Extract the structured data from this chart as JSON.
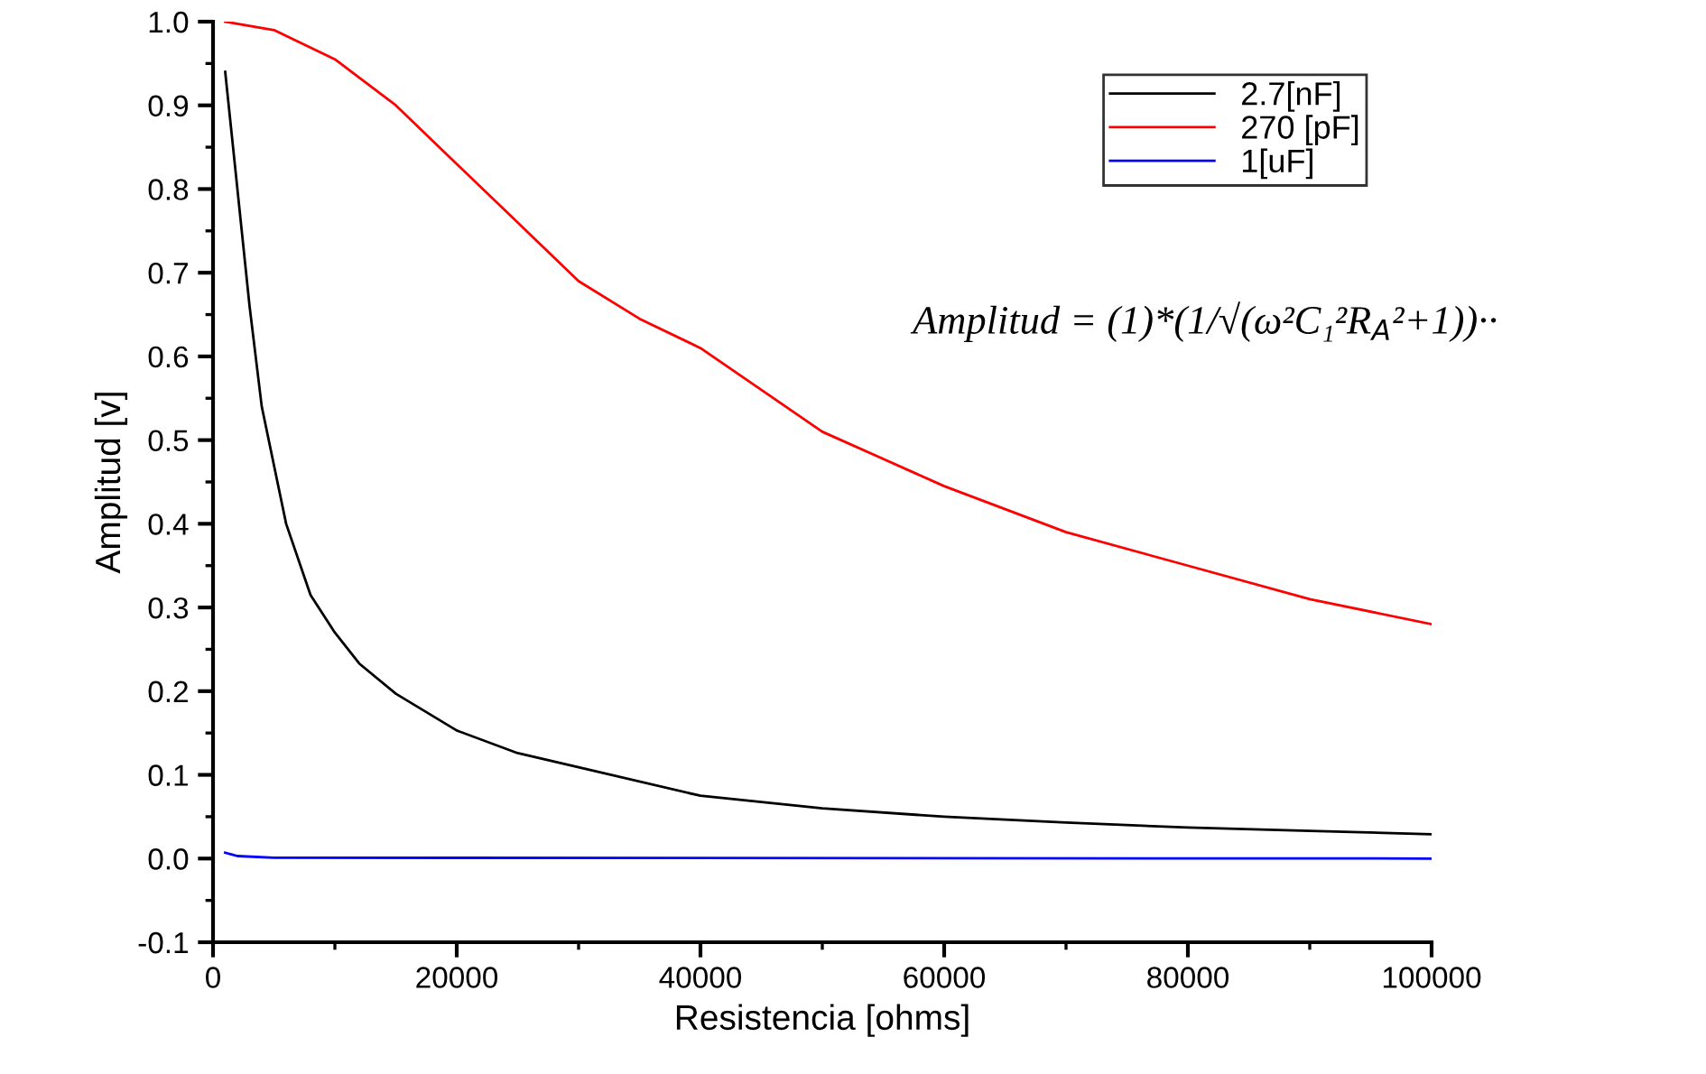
{
  "chart_data": {
    "type": "line",
    "xlabel": "Resistencia [ohms]",
    "ylabel": "Amplitud [v]",
    "xlim": [
      0,
      100000
    ],
    "xticks": [
      0,
      20000,
      40000,
      60000,
      80000,
      100000
    ],
    "ylim": [
      -0.1,
      1.0
    ],
    "yticks": [
      {
        "value": -0.1,
        "label": "-0.1"
      },
      {
        "value": 0,
        "label": "0.0"
      },
      0.1,
      0.2,
      0.3,
      0.4,
      0.5,
      0.6,
      0.7,
      0.8,
      0.9,
      {
        "value": 1.0,
        "label": "1.0"
      }
    ],
    "grid": false,
    "legend": "top right",
    "marker": "none",
    "line_style": "solid",
    "annotations": [
      "Amplitud = (1)*(1/√(ω²C₁²R$_{A}$²+1))··"
    ],
    "series": [
      {
        "name": "2.7[nF]",
        "color": "#000000",
        "x": [
          1000,
          2000,
          3000,
          4000,
          5000,
          6000,
          8000,
          10000,
          12000,
          15000,
          20000,
          25000,
          30000,
          40000,
          50000,
          60000,
          70000,
          80000,
          90000,
          100000
        ],
        "values": [
          0.94,
          0.8,
          0.66,
          0.54,
          0.47,
          0.4,
          0.315,
          0.27,
          0.233,
          0.197,
          0.153,
          0.126,
          0.109,
          0.075,
          0.06,
          0.05,
          0.043,
          0.037,
          0.033,
          0.029
        ]
      },
      {
        "name": "270 [pF]",
        "color": "#ff0000",
        "x": [
          1000,
          5000,
          10000,
          15000,
          20000,
          25000,
          30000,
          35000,
          40000,
          50000,
          60000,
          70000,
          80000,
          90000,
          100000
        ],
        "values": [
          1.0,
          0.99,
          0.955,
          0.9,
          0.83,
          0.76,
          0.69,
          0.645,
          0.61,
          0.51,
          0.445,
          0.39,
          0.35,
          0.31,
          0.28
        ]
      },
      {
        "name": "1[uF]",
        "color": "#0000ff",
        "x": [
          1000,
          2000,
          5000,
          100000
        ],
        "values": [
          0.007,
          0.003,
          0.001,
          0.0
        ]
      }
    ]
  }
}
